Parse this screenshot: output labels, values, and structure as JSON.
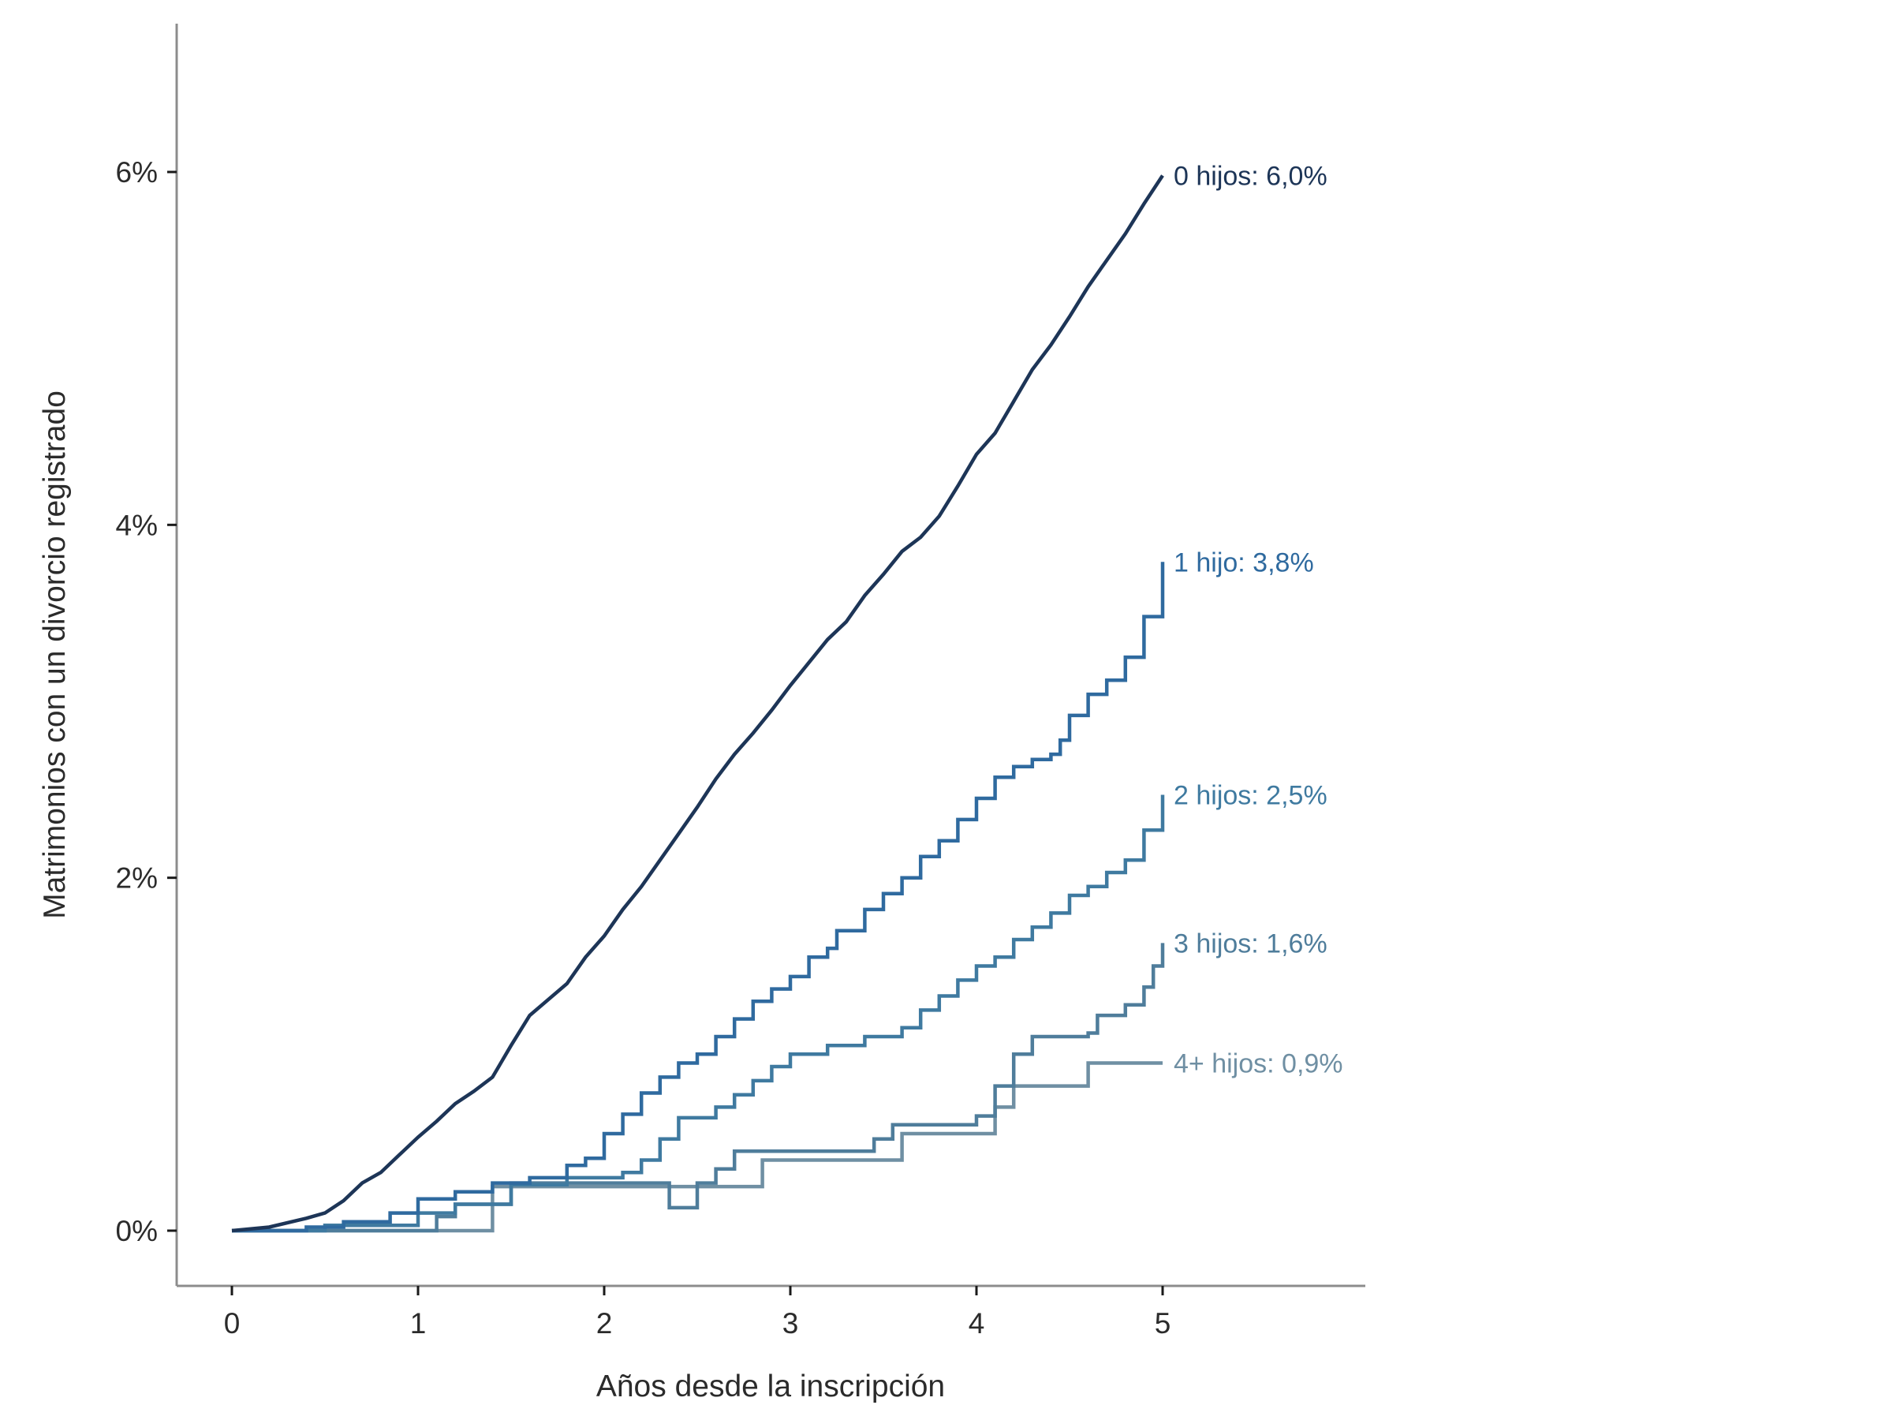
{
  "chart_data": {
    "type": "line",
    "xlabel": "Años desde la inscripción",
    "ylabel": "Matrimonios con un divorcio registrado",
    "xlim": [
      -0.3,
      6.1
    ],
    "ylim": [
      -0.3,
      6.85
    ],
    "x_ticks": [
      0,
      1,
      2,
      3,
      4,
      5
    ],
    "x_tick_labels": [
      "0",
      "1",
      "2",
      "3",
      "4",
      "5"
    ],
    "y_ticks": [
      0,
      2,
      4,
      6
    ],
    "y_tick_labels": [
      "0%",
      "2%",
      "4%",
      "6%"
    ],
    "grid": false,
    "legend": "none (direct labels at line ends)",
    "series": [
      {
        "name": "0 hijos",
        "end_label": "0 hijos: 6,0%",
        "color": "#1d3557",
        "step": false,
        "points": [
          [
            0,
            0
          ],
          [
            0.2,
            0.02
          ],
          [
            0.4,
            0.07
          ],
          [
            0.5,
            0.1
          ],
          [
            0.6,
            0.17
          ],
          [
            0.7,
            0.27
          ],
          [
            0.8,
            0.33
          ],
          [
            0.9,
            0.43
          ],
          [
            1.0,
            0.53
          ],
          [
            1.1,
            0.62
          ],
          [
            1.2,
            0.72
          ],
          [
            1.3,
            0.79
          ],
          [
            1.4,
            0.87
          ],
          [
            1.5,
            1.05
          ],
          [
            1.6,
            1.22
          ],
          [
            1.8,
            1.4
          ],
          [
            1.9,
            1.55
          ],
          [
            2.0,
            1.67
          ],
          [
            2.1,
            1.82
          ],
          [
            2.2,
            1.95
          ],
          [
            2.3,
            2.1
          ],
          [
            2.4,
            2.25
          ],
          [
            2.5,
            2.4
          ],
          [
            2.6,
            2.56
          ],
          [
            2.7,
            2.7
          ],
          [
            2.8,
            2.82
          ],
          [
            2.9,
            2.95
          ],
          [
            3.0,
            3.09
          ],
          [
            3.1,
            3.22
          ],
          [
            3.2,
            3.35
          ],
          [
            3.3,
            3.45
          ],
          [
            3.4,
            3.6
          ],
          [
            3.5,
            3.72
          ],
          [
            3.6,
            3.85
          ],
          [
            3.7,
            3.93
          ],
          [
            3.8,
            4.05
          ],
          [
            3.9,
            4.22
          ],
          [
            4.0,
            4.4
          ],
          [
            4.1,
            4.52
          ],
          [
            4.2,
            4.7
          ],
          [
            4.3,
            4.88
          ],
          [
            4.4,
            5.02
          ],
          [
            4.5,
            5.18
          ],
          [
            4.6,
            5.35
          ],
          [
            4.7,
            5.5
          ],
          [
            4.8,
            5.65
          ],
          [
            4.9,
            5.82
          ],
          [
            5.0,
            5.98
          ]
        ]
      },
      {
        "name": "1 hijo",
        "end_label": "1 hijo: 3,8%",
        "color": "#2f6a9f",
        "step": true,
        "points": [
          [
            0,
            0
          ],
          [
            0.4,
            0.02
          ],
          [
            0.6,
            0.05
          ],
          [
            0.85,
            0.1
          ],
          [
            1.0,
            0.18
          ],
          [
            1.2,
            0.22
          ],
          [
            1.4,
            0.27
          ],
          [
            1.6,
            0.3
          ],
          [
            1.8,
            0.37
          ],
          [
            1.9,
            0.41
          ],
          [
            2.0,
            0.55
          ],
          [
            2.1,
            0.66
          ],
          [
            2.2,
            0.78
          ],
          [
            2.3,
            0.87
          ],
          [
            2.4,
            0.95
          ],
          [
            2.5,
            1.0
          ],
          [
            2.6,
            1.1
          ],
          [
            2.7,
            1.2
          ],
          [
            2.8,
            1.3
          ],
          [
            2.9,
            1.37
          ],
          [
            3.0,
            1.44
          ],
          [
            3.1,
            1.55
          ],
          [
            3.2,
            1.6
          ],
          [
            3.25,
            1.7
          ],
          [
            3.4,
            1.82
          ],
          [
            3.5,
            1.91
          ],
          [
            3.6,
            2.0
          ],
          [
            3.7,
            2.12
          ],
          [
            3.8,
            2.21
          ],
          [
            3.9,
            2.33
          ],
          [
            4.0,
            2.45
          ],
          [
            4.1,
            2.57
          ],
          [
            4.2,
            2.63
          ],
          [
            4.3,
            2.67
          ],
          [
            4.4,
            2.7
          ],
          [
            4.45,
            2.78
          ],
          [
            4.5,
            2.92
          ],
          [
            4.6,
            3.04
          ],
          [
            4.7,
            3.12
          ],
          [
            4.8,
            3.25
          ],
          [
            4.9,
            3.48
          ],
          [
            5.0,
            3.79
          ]
        ]
      },
      {
        "name": "2 hijos",
        "end_label": "2 hijos: 2,5%",
        "color": "#3f7aa0",
        "step": true,
        "points": [
          [
            0,
            0
          ],
          [
            0.5,
            0.03
          ],
          [
            1.0,
            0.1
          ],
          [
            1.2,
            0.15
          ],
          [
            1.5,
            0.26
          ],
          [
            1.8,
            0.3
          ],
          [
            2.1,
            0.33
          ],
          [
            2.2,
            0.4
          ],
          [
            2.3,
            0.52
          ],
          [
            2.4,
            0.64
          ],
          [
            2.6,
            0.7
          ],
          [
            2.7,
            0.77
          ],
          [
            2.8,
            0.85
          ],
          [
            2.9,
            0.93
          ],
          [
            3.0,
            1.0
          ],
          [
            3.2,
            1.05
          ],
          [
            3.4,
            1.1
          ],
          [
            3.6,
            1.15
          ],
          [
            3.7,
            1.25
          ],
          [
            3.8,
            1.33
          ],
          [
            3.9,
            1.42
          ],
          [
            4.0,
            1.5
          ],
          [
            4.1,
            1.55
          ],
          [
            4.2,
            1.65
          ],
          [
            4.3,
            1.72
          ],
          [
            4.4,
            1.8
          ],
          [
            4.5,
            1.9
          ],
          [
            4.6,
            1.95
          ],
          [
            4.7,
            2.03
          ],
          [
            4.8,
            2.1
          ],
          [
            4.9,
            2.27
          ],
          [
            5.0,
            2.47
          ]
        ]
      },
      {
        "name": "3 hijos",
        "end_label": "3 hijos: 1,6%",
        "color": "#4f7d9b",
        "step": true,
        "points": [
          [
            0,
            0
          ],
          [
            1.0,
            0.0
          ],
          [
            1.1,
            0.08
          ],
          [
            1.2,
            0.15
          ],
          [
            1.4,
            0.15
          ],
          [
            1.5,
            0.27
          ],
          [
            2.3,
            0.27
          ],
          [
            2.35,
            0.13
          ],
          [
            2.5,
            0.27
          ],
          [
            2.6,
            0.35
          ],
          [
            2.7,
            0.45
          ],
          [
            3.3,
            0.45
          ],
          [
            3.45,
            0.52
          ],
          [
            3.55,
            0.6
          ],
          [
            4.0,
            0.65
          ],
          [
            4.1,
            0.82
          ],
          [
            4.2,
            1.0
          ],
          [
            4.3,
            1.1
          ],
          [
            4.6,
            1.12
          ],
          [
            4.65,
            1.22
          ],
          [
            4.8,
            1.28
          ],
          [
            4.9,
            1.38
          ],
          [
            4.95,
            1.5
          ],
          [
            5.0,
            1.63
          ]
        ]
      },
      {
        "name": "4+ hijos",
        "end_label": "4+ hijos: 0,9%",
        "color": "#6f8fa3",
        "step": true,
        "points": [
          [
            0,
            0
          ],
          [
            1.36,
            0.0
          ],
          [
            1.4,
            0.25
          ],
          [
            2.8,
            0.25
          ],
          [
            2.85,
            0.4
          ],
          [
            3.55,
            0.4
          ],
          [
            3.6,
            0.55
          ],
          [
            4.0,
            0.55
          ],
          [
            4.1,
            0.7
          ],
          [
            4.2,
            0.82
          ],
          [
            4.55,
            0.82
          ],
          [
            4.6,
            0.95
          ],
          [
            5.0,
            0.95
          ]
        ]
      }
    ]
  }
}
